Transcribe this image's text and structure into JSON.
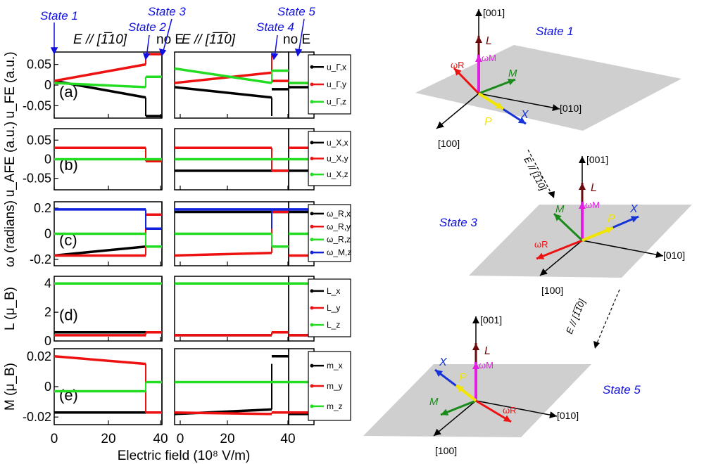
{
  "colors": {
    "black": "#000000",
    "red": "#ee1111",
    "green": "#22dd22",
    "blue": "#1122dd",
    "state_blue": "#1010e0",
    "plane": "#cfcfcf",
    "dark_red": "#6b0a0a",
    "magenta": "#e020e0",
    "dark_green": "#1a8a1a",
    "yellow": "#f2e600",
    "arrow_blue": "#1533d6"
  },
  "top_labels": {
    "state1": "State 1",
    "state2": "State 2",
    "state3": "State 3",
    "state4": "State 4",
    "state5": "State 5",
    "efield1": "E // [1̅10]",
    "efield2": "E // [1̅1̅0]",
    "noE1": "no E",
    "noE2": "no E"
  },
  "xaxis": {
    "label": "Electric field (10⁸ V/m)",
    "ticks": [
      "0",
      "20",
      "40",
      "0",
      "20",
      "40"
    ]
  },
  "chart_data": [
    {
      "type": "line",
      "panel_label": "(a)",
      "ylabel": "u_FE (a.u.)",
      "yticks": [
        "0.05",
        "0",
        "-0.05"
      ],
      "ylim": [
        -0.08,
        0.08
      ],
      "series": [
        {
          "name": "u_Γ,x",
          "seg1": [
            0.01,
            -0.03
          ],
          "jump1": -0.075,
          "seg2": [
            -0.005,
            -0.03
          ],
          "jump2": -0.075,
          "noE1": [
            -0.075,
            -0.075
          ],
          "noE3": [
            -0.01,
            -0.01
          ],
          "noE2": [
            -0.005,
            -0.005
          ]
        },
        {
          "name": "u_Γ,y",
          "seg1": [
            0.01,
            0.05
          ],
          "jump1": 0.075,
          "seg2": [
            0.005,
            0.03
          ],
          "jump2": 0.075,
          "noE1": [
            0.075,
            0.075
          ],
          "noE3": [
            0.01,
            0.01
          ],
          "noE2": [
            0.005,
            0.005
          ]
        },
        {
          "name": "u_Γ,z",
          "seg1": [
            0.005,
            -0.005
          ],
          "jump1": 0.02,
          "seg2": [
            0.04,
            0.005
          ],
          "jump2": 0.035,
          "noE1": [
            0.02,
            0.02
          ],
          "noE3": [
            0.035,
            0.035
          ],
          "noE2": [
            0.005,
            0.005
          ]
        }
      ],
      "legend": [
        "u_Γ,x",
        "u_Γ,y",
        "u_Γ,z"
      ]
    },
    {
      "type": "line",
      "panel_label": "(b)",
      "ylabel": "u_AFE (a.u.)",
      "yticks": [
        "0.05",
        "0",
        "-0.05"
      ],
      "ylim": [
        -0.08,
        0.08
      ],
      "series": [
        {
          "name": "u_X,x",
          "seg1": [
            0.03,
            0.03
          ],
          "jump1": -0.005,
          "seg2": [
            -0.03,
            -0.03
          ],
          "jump2": -0.03,
          "noE1": [
            -0.005,
            -0.005
          ],
          "noE3": [
            -0.03,
            -0.03
          ],
          "noE2": [
            -0.03,
            -0.03
          ]
        },
        {
          "name": "u_X,y",
          "seg1": [
            0.03,
            0.03
          ],
          "jump1": -0.005,
          "seg2": [
            0.03,
            0.03
          ],
          "jump2": -0.03,
          "noE1": [
            -0.005,
            -0.005
          ],
          "noE3": [
            -0.03,
            -0.03
          ],
          "noE2": [
            0.03,
            0.03
          ]
        },
        {
          "name": "u_X,z",
          "seg1": [
            0,
            0
          ],
          "jump1": 0,
          "seg2": [
            0,
            0
          ],
          "jump2": 0,
          "noE1": [
            0,
            0
          ],
          "noE3": [
            0,
            0
          ],
          "noE2": [
            0,
            0
          ]
        }
      ],
      "legend": [
        "u_X,x",
        "u_X,y",
        "u_X,z"
      ]
    },
    {
      "type": "line",
      "panel_label": "(c)",
      "ylabel": "ω (radians)",
      "yticks": [
        "0.2",
        "0",
        "-0.2"
      ],
      "ylim": [
        -0.25,
        0.25
      ],
      "series": [
        {
          "name": "ω_R,x",
          "seg1": [
            -0.17,
            -0.1
          ],
          "jump1": 0.15,
          "seg2": [
            0.17,
            0.17
          ],
          "jump2": 0.17,
          "noE1": [
            0.15,
            0.15
          ],
          "noE3": [
            0.17,
            0.17
          ],
          "noE2": [
            0.17,
            0.17
          ]
        },
        {
          "name": "ω_R,y",
          "seg1": [
            -0.17,
            -0.17
          ],
          "jump1": 0.15,
          "seg2": [
            -0.17,
            -0.15
          ],
          "jump2": 0.15,
          "noE1": [
            0.15,
            0.15
          ],
          "noE3": [
            0.17,
            0.17
          ],
          "noE2": [
            -0.17,
            -0.17
          ]
        },
        {
          "name": "ω_R,z",
          "seg1": [
            0,
            0
          ],
          "jump1": -0.1,
          "seg2": [
            0,
            0
          ],
          "jump2": -0.1,
          "noE1": [
            -0.1,
            -0.1
          ],
          "noE3": [
            -0.1,
            -0.1
          ],
          "noE2": [
            0,
            0
          ]
        },
        {
          "name": "ω_M,z",
          "seg1": [
            0.19,
            0.19
          ],
          "jump1": 0.04,
          "seg2": [
            0.19,
            0.19
          ],
          "jump2": 0.04,
          "noE1": [
            0.04,
            0.04
          ],
          "noE3": [
            0.19,
            0.19
          ],
          "noE2": [
            0.19,
            0.19
          ]
        }
      ],
      "legend": [
        "ω_R,x",
        "ω_R,y",
        "ω_R,z",
        "ω_M,z"
      ]
    },
    {
      "type": "line",
      "panel_label": "(d)",
      "ylabel": "L (μ_B)",
      "yticks": [
        "4",
        "2",
        "0"
      ],
      "ylim": [
        0,
        4.5
      ],
      "series": [
        {
          "name": "L_x",
          "seg1": [
            0.6,
            0.6
          ],
          "jump1": 0.6,
          "seg2": [
            0.4,
            0.4
          ],
          "jump2": 0.6,
          "noE1": [
            0.6,
            0.6
          ],
          "noE3": [
            0.6,
            0.6
          ],
          "noE2": [
            0.4,
            0.4
          ]
        },
        {
          "name": "L_y",
          "seg1": [
            0.4,
            0.4
          ],
          "jump1": 0.6,
          "seg2": [
            0.4,
            0.4
          ],
          "jump2": 0.6,
          "noE1": [
            0.6,
            0.6
          ],
          "noE3": [
            0.6,
            0.6
          ],
          "noE2": [
            0.4,
            0.4
          ]
        },
        {
          "name": "L_z",
          "seg1": [
            4,
            4
          ],
          "jump1": 4,
          "seg2": [
            4,
            4
          ],
          "jump2": 4,
          "noE1": [
            4,
            4
          ],
          "noE3": [
            4,
            4
          ],
          "noE2": [
            4,
            4
          ]
        }
      ],
      "legend": [
        "L_x",
        "L_y",
        "L_z"
      ]
    },
    {
      "type": "line",
      "panel_label": "(e)",
      "ylabel": "M (μ_B)",
      "yticks": [
        "0.02",
        "0",
        "-0.02"
      ],
      "ylim": [
        -0.025,
        0.025
      ],
      "series": [
        {
          "name": "m_x",
          "seg1": [
            -0.017,
            -0.017
          ],
          "jump1": -0.017,
          "seg2": [
            -0.018,
            -0.015
          ],
          "jump2": 0.015,
          "noE1": [
            -0.017,
            -0.017
          ],
          "noE3": [
            0.02,
            0.02
          ],
          "noE2": [
            -0.018,
            -0.018
          ]
        },
        {
          "name": "m_y",
          "seg1": [
            0.02,
            0.015
          ],
          "jump1": -0.017,
          "seg2": [
            -0.017,
            -0.018
          ],
          "jump2": -0.017,
          "noE1": [
            -0.017,
            -0.017
          ],
          "noE3": [
            -0.017,
            -0.017
          ],
          "noE2": [
            -0.017,
            -0.017
          ]
        },
        {
          "name": "m_z",
          "seg1": [
            -0.003,
            -0.003
          ],
          "jump1": 0.003,
          "seg2": [
            0.003,
            0.003
          ],
          "jump2": 0.003,
          "noE1": [
            0.003,
            0.003
          ],
          "noE3": [
            0.003,
            0.003
          ],
          "noE2": [
            0.003,
            0.003
          ]
        }
      ],
      "legend": [
        "m_x",
        "m_y",
        "m_z"
      ]
    }
  ],
  "diagram": {
    "states": [
      "State 1",
      "State 3",
      "State 5"
    ],
    "transition1": "E // [1̅10]",
    "transition2": "E // [1̅1̅0]",
    "axes": {
      "up": "[001]",
      "right": "[010]",
      "front": "[100]"
    },
    "vectors": {
      "L": "L",
      "omegaM": "ωM",
      "omegaR": "ωR",
      "M": "M",
      "P": "P",
      "X": "X"
    }
  }
}
